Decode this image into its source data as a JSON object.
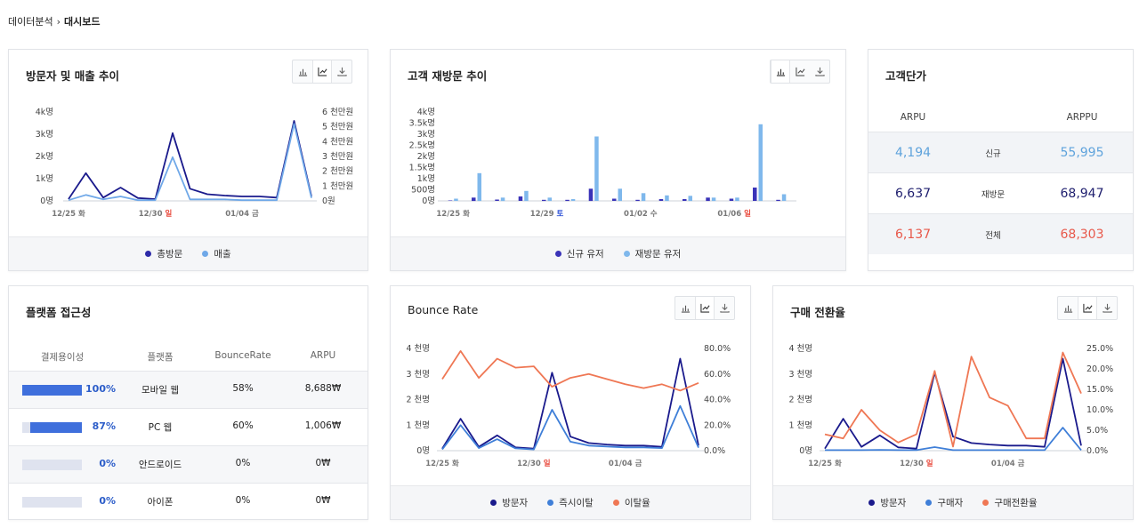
{
  "breadcrumb": {
    "parent": "데이터분석",
    "current": "대시보드"
  },
  "colors": {
    "navy": "#1a1a8c",
    "light_blue": "#6fa8e8",
    "bar_navy": "#3a33b8",
    "bar_light": "#7fb8ec",
    "blue": "#3f7fd8",
    "orange": "#ef7754",
    "red_date": "#e8483b",
    "blue_date": "#2b4fd6"
  },
  "cards": {
    "visits_sales": {
      "title": "방문자 및 매출 추이",
      "legend": [
        "총방문",
        "매출"
      ],
      "icons": [
        "bar-chart-icon",
        "line-chart-icon",
        "download-icon"
      ]
    },
    "revisit": {
      "title": "고객 재방문 추이",
      "legend": [
        "신규 유저",
        "재방문 유저"
      ],
      "icons": [
        "bar-chart-icon",
        "line-chart-icon",
        "download-icon"
      ]
    },
    "unit_price": {
      "title": "고객단가",
      "col1": "ARPU",
      "col2": "ARPPU",
      "rows": [
        {
          "label": "신규",
          "arpu": "4,194",
          "arppu": "55,995",
          "color": "#5fa3dc"
        },
        {
          "label": "재방문",
          "arpu": "6,637",
          "arppu": "68,947",
          "color": "#1e1e6e"
        },
        {
          "label": "전체",
          "arpu": "6,137",
          "arppu": "68,303",
          "color": "#e8584a"
        }
      ]
    },
    "platform": {
      "title": "플랫폼 접근성",
      "headers": [
        "결제용이성",
        "플랫폼",
        "BounceRate",
        "ARPU"
      ],
      "rows": [
        {
          "ease": 1.0,
          "ease_label": "100%",
          "platform": "모바일 웹",
          "bounce": "58%",
          "arpu": "8,688₩"
        },
        {
          "ease": 0.87,
          "ease_label": "87%",
          "platform": "PC 웹",
          "bounce": "60%",
          "arpu": "1,006₩"
        },
        {
          "ease": 0.0,
          "ease_label": "0%",
          "platform": "안드로이드",
          "bounce": "0%",
          "arpu": "0₩"
        },
        {
          "ease": 0.0,
          "ease_label": "0%",
          "platform": "아이폰",
          "bounce": "0%",
          "arpu": "0₩"
        }
      ]
    },
    "bounce": {
      "title": "Bounce Rate",
      "legend": [
        "방문자",
        "즉시이탈",
        "이탈율"
      ],
      "icons": [
        "bar-chart-icon",
        "line-chart-icon",
        "download-icon"
      ]
    },
    "conversion": {
      "title": "구매 전환율",
      "legend": [
        "방문자",
        "구매자",
        "구매전환율"
      ],
      "icons": [
        "bar-chart-icon",
        "line-chart-icon",
        "download-icon"
      ]
    }
  },
  "chart_data": [
    {
      "id": "visits_sales",
      "type": "line",
      "x_ticks": [
        {
          "label": "12/25",
          "day": "화",
          "day_color": "normal",
          "index": 0
        },
        {
          "label": "12/30",
          "day": "일",
          "day_color": "red",
          "index": 5
        },
        {
          "label": "01/04",
          "day": "금",
          "day_color": "normal",
          "index": 10
        }
      ],
      "y_left_ticks": [
        "0명",
        "1k명",
        "2k명",
        "3k명",
        "4k명"
      ],
      "y_left_range": [
        0,
        4000
      ],
      "y_right_ticks": [
        "0원",
        "1 천만원",
        "2 천만원",
        "3 천만원",
        "4 천만원",
        "5 천만원",
        "6 천만원"
      ],
      "y_right_range": [
        0,
        6
      ],
      "series": [
        {
          "name": "총방문",
          "axis": "left",
          "color": "#1a1a8c",
          "values": [
            80,
            1250,
            150,
            600,
            130,
            80,
            3050,
            550,
            300,
            240,
            200,
            200,
            150,
            3600,
            200
          ]
        },
        {
          "name": "매출",
          "axis": "right",
          "color": "#6fa8e8",
          "values": [
            0.05,
            0.4,
            0.1,
            0.3,
            0.05,
            0.05,
            2.95,
            0.1,
            0.1,
            0.1,
            0.05,
            0.05,
            0.05,
            5.2,
            0.2
          ]
        }
      ]
    },
    {
      "id": "revisit",
      "type": "bar",
      "x_ticks": [
        {
          "label": "12/25",
          "day": "화",
          "day_color": "normal",
          "index": 0
        },
        {
          "label": "12/29",
          "day": "토",
          "day_color": "blue",
          "index": 4
        },
        {
          "label": "01/02",
          "day": "수",
          "day_color": "normal",
          "index": 8
        },
        {
          "label": "01/06",
          "day": "일",
          "day_color": "red",
          "index": 12
        }
      ],
      "y_ticks": [
        "0명",
        "500명",
        "1k명",
        "1.5k명",
        "2k명",
        "2.5k명",
        "3k명",
        "3.5k명",
        "4k명"
      ],
      "y_range": [
        0,
        4000
      ],
      "series": [
        {
          "name": "신규 유저",
          "color": "#3a33b8",
          "values": [
            20,
            150,
            60,
            200,
            50,
            50,
            550,
            100,
            50,
            80,
            80,
            150,
            100,
            600,
            50
          ]
        },
        {
          "name": "재방문 유저",
          "color": "#7fb8ec",
          "values": [
            100,
            1250,
            150,
            450,
            150,
            80,
            2900,
            550,
            350,
            250,
            230,
            150,
            150,
            3450,
            300
          ]
        }
      ]
    },
    {
      "id": "bounce",
      "type": "line",
      "x_ticks": [
        {
          "label": "12/25",
          "day": "화",
          "day_color": "normal",
          "index": 0
        },
        {
          "label": "12/30",
          "day": "일",
          "day_color": "red",
          "index": 5
        },
        {
          "label": "01/04",
          "day": "금",
          "day_color": "normal",
          "index": 10
        }
      ],
      "y_left_ticks": [
        "0명",
        "1 천명",
        "2 천명",
        "3 천명",
        "4 천명"
      ],
      "y_left_range": [
        0,
        4000
      ],
      "y_right_ticks": [
        "0.0%",
        "20.0%",
        "40.0%",
        "60.0%",
        "80.0%"
      ],
      "y_right_range": [
        0,
        80
      ],
      "series": [
        {
          "name": "방문자",
          "axis": "left",
          "color": "#1a1a8c",
          "values": [
            80,
            1250,
            150,
            600,
            130,
            80,
            3050,
            550,
            300,
            240,
            200,
            200,
            150,
            3600,
            200
          ]
        },
        {
          "name": "즉시이탈",
          "axis": "left",
          "color": "#3f7fd8",
          "values": [
            50,
            1000,
            100,
            450,
            90,
            50,
            1600,
            350,
            200,
            160,
            130,
            130,
            100,
            1750,
            120
          ]
        },
        {
          "name": "이탈율",
          "axis": "right",
          "color": "#ef7754",
          "values": [
            56,
            78,
            57,
            72,
            65,
            66,
            50,
            57,
            60,
            56,
            52,
            49,
            52,
            47,
            53
          ]
        }
      ]
    },
    {
      "id": "conversion",
      "type": "line",
      "x_ticks": [
        {
          "label": "12/25",
          "day": "화",
          "day_color": "normal",
          "index": 0
        },
        {
          "label": "12/30",
          "day": "일",
          "day_color": "red",
          "index": 5
        },
        {
          "label": "01/04",
          "day": "금",
          "day_color": "normal",
          "index": 10
        }
      ],
      "y_left_ticks": [
        "0명",
        "1 천명",
        "2 천명",
        "3 천명",
        "4 천명"
      ],
      "y_left_range": [
        0,
        4000
      ],
      "y_right_ticks": [
        "0.0%",
        "5.0%",
        "10.0%",
        "15.0%",
        "20.0%",
        "25.0%"
      ],
      "y_right_range": [
        0,
        25
      ],
      "series": [
        {
          "name": "방문자",
          "axis": "left",
          "color": "#1a1a8c",
          "values": [
            80,
            1250,
            150,
            600,
            130,
            80,
            3050,
            550,
            300,
            240,
            200,
            200,
            150,
            3600,
            200
          ]
        },
        {
          "name": "구매자",
          "axis": "left",
          "color": "#3f7fd8",
          "values": [
            20,
            20,
            20,
            30,
            20,
            20,
            140,
            20,
            20,
            20,
            20,
            20,
            20,
            900,
            20
          ]
        },
        {
          "name": "구매전환율",
          "axis": "right",
          "color": "#ef7754",
          "values": [
            4,
            3,
            10,
            5,
            2,
            4,
            19.5,
            1,
            23,
            13,
            11,
            3,
            3,
            24,
            14
          ]
        }
      ]
    }
  ]
}
